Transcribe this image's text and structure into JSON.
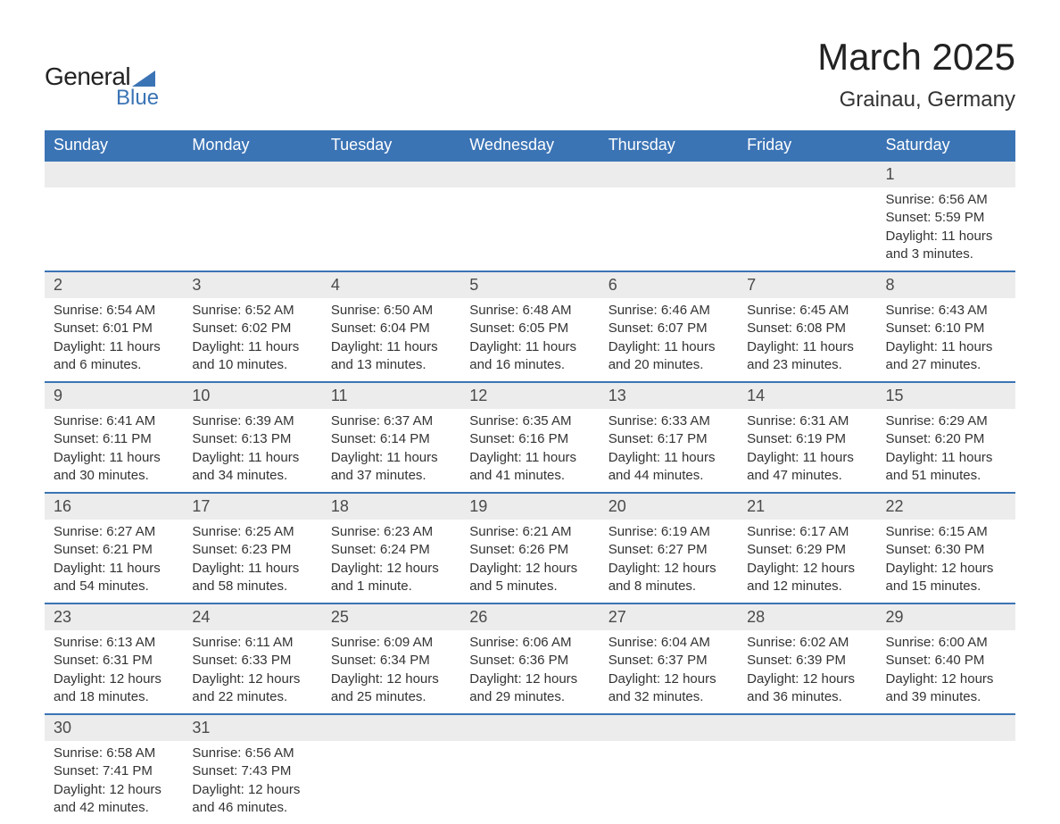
{
  "logo": {
    "text_general": "General",
    "text_blue": "Blue",
    "shape_color": "#3b74b5"
  },
  "title": "March 2025",
  "location": "Grainau, Germany",
  "colors": {
    "header_bg": "#3b74b5",
    "header_text": "#ffffff",
    "daynum_bg": "#ececec",
    "row_divider": "#3b74b5",
    "body_text": "#333333",
    "background": "#ffffff"
  },
  "typography": {
    "title_fontsize": 42,
    "location_fontsize": 24,
    "weekday_fontsize": 18,
    "daynum_fontsize": 18,
    "detail_fontsize": 15
  },
  "weekdays": [
    "Sunday",
    "Monday",
    "Tuesday",
    "Wednesday",
    "Thursday",
    "Friday",
    "Saturday"
  ],
  "weeks": [
    [
      null,
      null,
      null,
      null,
      null,
      null,
      {
        "day": "1",
        "sunrise": "Sunrise: 6:56 AM",
        "sunset": "Sunset: 5:59 PM",
        "daylight": "Daylight: 11 hours and 3 minutes."
      }
    ],
    [
      {
        "day": "2",
        "sunrise": "Sunrise: 6:54 AM",
        "sunset": "Sunset: 6:01 PM",
        "daylight": "Daylight: 11 hours and 6 minutes."
      },
      {
        "day": "3",
        "sunrise": "Sunrise: 6:52 AM",
        "sunset": "Sunset: 6:02 PM",
        "daylight": "Daylight: 11 hours and 10 minutes."
      },
      {
        "day": "4",
        "sunrise": "Sunrise: 6:50 AM",
        "sunset": "Sunset: 6:04 PM",
        "daylight": "Daylight: 11 hours and 13 minutes."
      },
      {
        "day": "5",
        "sunrise": "Sunrise: 6:48 AM",
        "sunset": "Sunset: 6:05 PM",
        "daylight": "Daylight: 11 hours and 16 minutes."
      },
      {
        "day": "6",
        "sunrise": "Sunrise: 6:46 AM",
        "sunset": "Sunset: 6:07 PM",
        "daylight": "Daylight: 11 hours and 20 minutes."
      },
      {
        "day": "7",
        "sunrise": "Sunrise: 6:45 AM",
        "sunset": "Sunset: 6:08 PM",
        "daylight": "Daylight: 11 hours and 23 minutes."
      },
      {
        "day": "8",
        "sunrise": "Sunrise: 6:43 AM",
        "sunset": "Sunset: 6:10 PM",
        "daylight": "Daylight: 11 hours and 27 minutes."
      }
    ],
    [
      {
        "day": "9",
        "sunrise": "Sunrise: 6:41 AM",
        "sunset": "Sunset: 6:11 PM",
        "daylight": "Daylight: 11 hours and 30 minutes."
      },
      {
        "day": "10",
        "sunrise": "Sunrise: 6:39 AM",
        "sunset": "Sunset: 6:13 PM",
        "daylight": "Daylight: 11 hours and 34 minutes."
      },
      {
        "day": "11",
        "sunrise": "Sunrise: 6:37 AM",
        "sunset": "Sunset: 6:14 PM",
        "daylight": "Daylight: 11 hours and 37 minutes."
      },
      {
        "day": "12",
        "sunrise": "Sunrise: 6:35 AM",
        "sunset": "Sunset: 6:16 PM",
        "daylight": "Daylight: 11 hours and 41 minutes."
      },
      {
        "day": "13",
        "sunrise": "Sunrise: 6:33 AM",
        "sunset": "Sunset: 6:17 PM",
        "daylight": "Daylight: 11 hours and 44 minutes."
      },
      {
        "day": "14",
        "sunrise": "Sunrise: 6:31 AM",
        "sunset": "Sunset: 6:19 PM",
        "daylight": "Daylight: 11 hours and 47 minutes."
      },
      {
        "day": "15",
        "sunrise": "Sunrise: 6:29 AM",
        "sunset": "Sunset: 6:20 PM",
        "daylight": "Daylight: 11 hours and 51 minutes."
      }
    ],
    [
      {
        "day": "16",
        "sunrise": "Sunrise: 6:27 AM",
        "sunset": "Sunset: 6:21 PM",
        "daylight": "Daylight: 11 hours and 54 minutes."
      },
      {
        "day": "17",
        "sunrise": "Sunrise: 6:25 AM",
        "sunset": "Sunset: 6:23 PM",
        "daylight": "Daylight: 11 hours and 58 minutes."
      },
      {
        "day": "18",
        "sunrise": "Sunrise: 6:23 AM",
        "sunset": "Sunset: 6:24 PM",
        "daylight": "Daylight: 12 hours and 1 minute."
      },
      {
        "day": "19",
        "sunrise": "Sunrise: 6:21 AM",
        "sunset": "Sunset: 6:26 PM",
        "daylight": "Daylight: 12 hours and 5 minutes."
      },
      {
        "day": "20",
        "sunrise": "Sunrise: 6:19 AM",
        "sunset": "Sunset: 6:27 PM",
        "daylight": "Daylight: 12 hours and 8 minutes."
      },
      {
        "day": "21",
        "sunrise": "Sunrise: 6:17 AM",
        "sunset": "Sunset: 6:29 PM",
        "daylight": "Daylight: 12 hours and 12 minutes."
      },
      {
        "day": "22",
        "sunrise": "Sunrise: 6:15 AM",
        "sunset": "Sunset: 6:30 PM",
        "daylight": "Daylight: 12 hours and 15 minutes."
      }
    ],
    [
      {
        "day": "23",
        "sunrise": "Sunrise: 6:13 AM",
        "sunset": "Sunset: 6:31 PM",
        "daylight": "Daylight: 12 hours and 18 minutes."
      },
      {
        "day": "24",
        "sunrise": "Sunrise: 6:11 AM",
        "sunset": "Sunset: 6:33 PM",
        "daylight": "Daylight: 12 hours and 22 minutes."
      },
      {
        "day": "25",
        "sunrise": "Sunrise: 6:09 AM",
        "sunset": "Sunset: 6:34 PM",
        "daylight": "Daylight: 12 hours and 25 minutes."
      },
      {
        "day": "26",
        "sunrise": "Sunrise: 6:06 AM",
        "sunset": "Sunset: 6:36 PM",
        "daylight": "Daylight: 12 hours and 29 minutes."
      },
      {
        "day": "27",
        "sunrise": "Sunrise: 6:04 AM",
        "sunset": "Sunset: 6:37 PM",
        "daylight": "Daylight: 12 hours and 32 minutes."
      },
      {
        "day": "28",
        "sunrise": "Sunrise: 6:02 AM",
        "sunset": "Sunset: 6:39 PM",
        "daylight": "Daylight: 12 hours and 36 minutes."
      },
      {
        "day": "29",
        "sunrise": "Sunrise: 6:00 AM",
        "sunset": "Sunset: 6:40 PM",
        "daylight": "Daylight: 12 hours and 39 minutes."
      }
    ],
    [
      {
        "day": "30",
        "sunrise": "Sunrise: 6:58 AM",
        "sunset": "Sunset: 7:41 PM",
        "daylight": "Daylight: 12 hours and 42 minutes."
      },
      {
        "day": "31",
        "sunrise": "Sunrise: 6:56 AM",
        "sunset": "Sunset: 7:43 PM",
        "daylight": "Daylight: 12 hours and 46 minutes."
      },
      null,
      null,
      null,
      null,
      null
    ]
  ]
}
